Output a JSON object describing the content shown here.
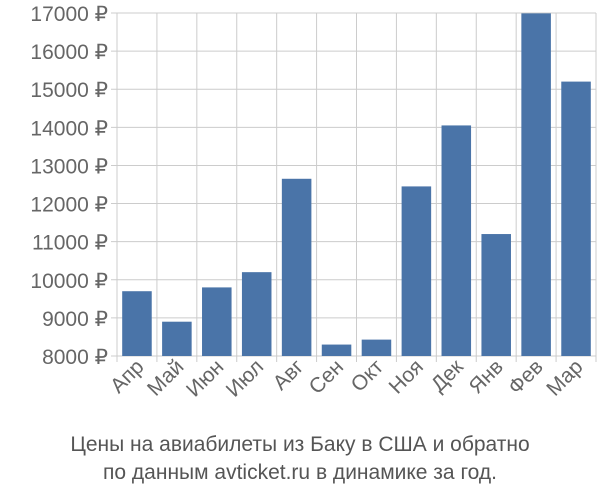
{
  "chart_data": {
    "type": "bar",
    "categories": [
      "Апр",
      "Май",
      "Июн",
      "Июл",
      "Авг",
      "Сен",
      "Окт",
      "Ноя",
      "Дек",
      "Янв",
      "Фев",
      "Мар"
    ],
    "series": [
      {
        "values": [
          9700,
          8900,
          9800,
          10200,
          12650,
          8300,
          8430,
          12450,
          14050,
          11200,
          16990,
          15200
        ]
      }
    ],
    "ylim": [
      8000,
      17000
    ],
    "yticks": [
      8000,
      9000,
      10000,
      11000,
      12000,
      13000,
      14000,
      15000,
      16000,
      17000
    ],
    "ytick_labels": [
      "8000 ₽",
      "9000 ₽",
      "10000 ₽",
      "11000 ₽",
      "12000 ₽",
      "13000 ₽",
      "14000 ₽",
      "15000 ₽",
      "16000 ₽",
      "17000 ₽"
    ],
    "grid": true,
    "bar_color": "#4a74a8",
    "grid_color": "#cccccc"
  },
  "caption": {
    "line1": "Цены на авиабилеты из Баку в США и обратно",
    "line2": "по данным avticket.ru в динамике за год."
  }
}
